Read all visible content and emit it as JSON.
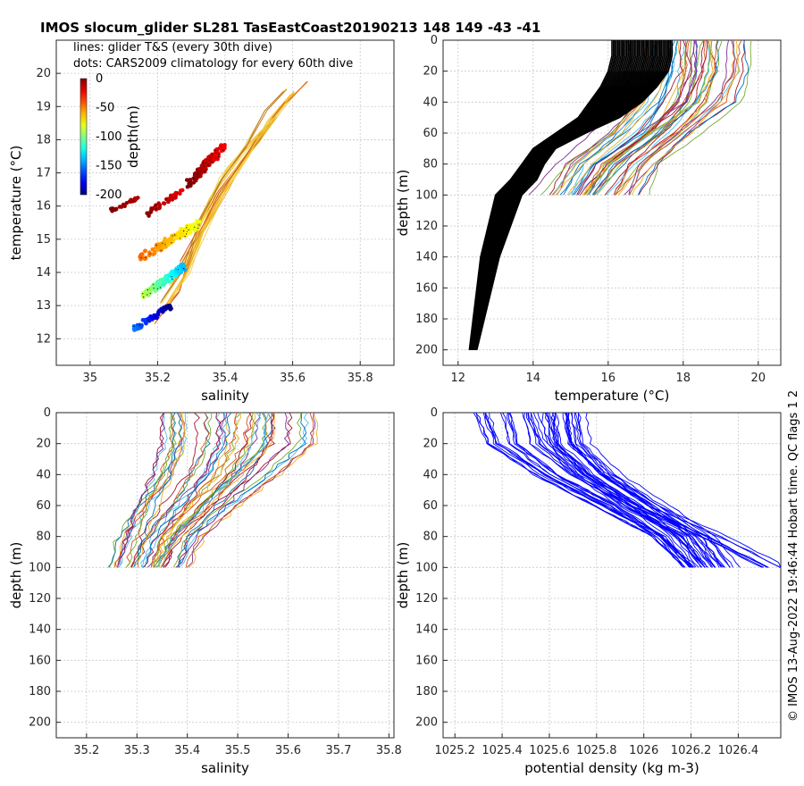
{
  "title": "IMOS slocum_glider SL281 TasEastCoast20190213 148  149  -43  -41",
  "copyright": "© IMOS 13-Aug-2022 19:46:44 Hobart time. QC flags 1  2",
  "colors": {
    "grid": "#c8c8d0",
    "axis": "#262626",
    "density_lines": "#0000ff",
    "climatology_temp": "#000000",
    "series_palette": [
      "#0072bd",
      "#d95319",
      "#edb120",
      "#7e2f8e",
      "#77ac30",
      "#4dbeee",
      "#a2142f"
    ]
  },
  "chart_data": [
    {
      "id": "ts",
      "type": "scatter",
      "annotations": [
        "lines: glider T&S (every 30th dive)",
        "dots: CARS2009 climatology for every 60th dive"
      ],
      "xlabel": "salinity",
      "ylabel": "temperature (°C)",
      "xlim": [
        34.9,
        35.9
      ],
      "ylim": [
        11.2,
        21.0
      ],
      "xticks": [
        35,
        35.2,
        35.4,
        35.6,
        35.8
      ],
      "yticks": [
        12,
        13,
        14,
        15,
        16,
        17,
        18,
        19,
        20
      ],
      "grid": true,
      "colorbar": {
        "label": "depth(m)",
        "ticks": [
          0,
          -50,
          -100,
          -150,
          -200
        ],
        "range": [
          -200,
          0
        ],
        "colormap": "jet"
      },
      "glider_lines": [
        {
          "points": [
            [
              35.19,
              12.5
            ],
            [
              35.26,
              13.4
            ],
            [
              35.3,
              14.6
            ],
            [
              35.36,
              15.9
            ],
            [
              35.43,
              17.0
            ],
            [
              35.5,
              18.0
            ],
            [
              35.57,
              19.0
            ],
            [
              35.64,
              19.8
            ]
          ]
        },
        {
          "points": [
            [
              35.22,
              12.9
            ],
            [
              35.29,
              14.0
            ],
            [
              35.34,
              15.2
            ],
            [
              35.4,
              16.4
            ],
            [
              35.47,
              17.5
            ],
            [
              35.53,
              18.5
            ],
            [
              35.6,
              19.4
            ]
          ]
        },
        {
          "points": [
            [
              35.24,
              13.6
            ],
            [
              35.31,
              14.8
            ],
            [
              35.37,
              16.0
            ],
            [
              35.43,
              17.0
            ],
            [
              35.49,
              17.9
            ],
            [
              35.55,
              18.7
            ]
          ]
        },
        {
          "points": [
            [
              35.27,
              14.3
            ],
            [
              35.33,
              15.4
            ],
            [
              35.38,
              16.4
            ],
            [
              35.44,
              17.3
            ],
            [
              35.51,
              18.2
            ],
            [
              35.58,
              19.1
            ]
          ]
        },
        {
          "points": [
            [
              35.31,
              15.3
            ],
            [
              35.36,
              16.2
            ],
            [
              35.41,
              17.1
            ],
            [
              35.47,
              17.8
            ],
            [
              35.54,
              18.6
            ]
          ]
        },
        {
          "points": [
            [
              35.21,
              13.1
            ],
            [
              35.28,
              14.2
            ],
            [
              35.33,
              15.6
            ],
            [
              35.39,
              16.8
            ],
            [
              35.46,
              17.8
            ],
            [
              35.52,
              18.9
            ],
            [
              35.58,
              19.5
            ]
          ]
        }
      ],
      "climatology_clusters": [
        {
          "x": [
            35.06,
            35.14
          ],
          "y": [
            15.8,
            16.3
          ],
          "depth": [
            -10,
            0
          ],
          "n": 22
        },
        {
          "x": [
            35.17,
            35.27
          ],
          "y": [
            15.7,
            16.5
          ],
          "depth": [
            -20,
            -5
          ],
          "n": 40
        },
        {
          "x": [
            35.29,
            35.4
          ],
          "y": [
            16.5,
            18.0
          ],
          "depth": [
            -25,
            0
          ],
          "n": 130
        },
        {
          "x": [
            35.15,
            35.32
          ],
          "y": [
            14.3,
            15.6
          ],
          "depth": [
            -80,
            -45
          ],
          "n": 120
        },
        {
          "x": [
            35.16,
            35.28
          ],
          "y": [
            13.2,
            14.3
          ],
          "depth": [
            -140,
            -90
          ],
          "n": 120
        },
        {
          "x": [
            35.13,
            35.24
          ],
          "y": [
            12.2,
            13.1
          ],
          "depth": [
            -200,
            -150
          ],
          "n": 80
        }
      ]
    },
    {
      "id": "temp_profile",
      "type": "line",
      "xlabel": "temperature (°C)",
      "ylabel": "depth (m)",
      "xlim": [
        11.6,
        20.6
      ],
      "ylim": [
        0,
        210
      ],
      "y_reversed": true,
      "xticks": [
        12,
        14,
        16,
        18,
        20
      ],
      "yticks": [
        0,
        20,
        40,
        60,
        80,
        100,
        120,
        140,
        160,
        180,
        200
      ],
      "grid": true,
      "climatology_profile": {
        "depth": [
          0,
          10,
          20,
          30,
          40,
          50,
          60,
          70,
          80,
          90,
          100,
          120,
          140,
          160,
          180,
          200
        ],
        "temp_min": [
          16.1,
          16.1,
          16.0,
          15.8,
          15.5,
          15.2,
          14.6,
          14.0,
          13.7,
          13.4,
          13.0,
          12.8,
          12.6,
          12.5,
          12.4,
          12.3
        ],
        "temp_max": [
          17.7,
          17.7,
          17.6,
          17.3,
          16.9,
          16.3,
          15.4,
          14.6,
          14.3,
          14.1,
          13.7,
          13.4,
          13.1,
          12.9,
          12.7,
          12.5
        ]
      },
      "glider_profiles": [
        {
          "depth": [
            0,
            20,
            40,
            60,
            80,
            100
          ],
          "temp": [
            18.3,
            18.3,
            18.1,
            17.4,
            16.2,
            15.6
          ]
        },
        {
          "depth": [
            0,
            20,
            40,
            60,
            80,
            100
          ],
          "temp": [
            18.8,
            18.8,
            18.5,
            17.8,
            16.8,
            16.1
          ]
        },
        {
          "depth": [
            0,
            20,
            40,
            60,
            80,
            100
          ],
          "temp": [
            17.5,
            17.5,
            17.2,
            16.4,
            15.3,
            14.8
          ]
        },
        {
          "depth": [
            0,
            20,
            40,
            60,
            80,
            100
          ],
          "temp": [
            19.6,
            19.6,
            19.2,
            18.2,
            17.2,
            16.8
          ]
        },
        {
          "depth": [
            0,
            20,
            40,
            60,
            80,
            100
          ],
          "temp": [
            18.0,
            17.9,
            17.6,
            16.9,
            15.8,
            15.2
          ]
        },
        {
          "depth": [
            0,
            20,
            40,
            60,
            80,
            100
          ],
          "temp": [
            19.0,
            19.0,
            18.6,
            17.5,
            16.3,
            15.7
          ]
        },
        {
          "depth": [
            0,
            20,
            40,
            60,
            80,
            100
          ],
          "temp": [
            17.2,
            17.2,
            16.9,
            16.2,
            15.1,
            14.5
          ]
        }
      ]
    },
    {
      "id": "sal_profile",
      "type": "line",
      "xlabel": "salinity",
      "ylabel": "depth (m)",
      "xlim": [
        35.14,
        35.81
      ],
      "ylim": [
        0,
        210
      ],
      "y_reversed": true,
      "xticks": [
        35.2,
        35.3,
        35.4,
        35.5,
        35.6,
        35.7,
        35.8
      ],
      "yticks": [
        0,
        20,
        40,
        60,
        80,
        100,
        120,
        140,
        160,
        180,
        200
      ],
      "grid": true,
      "glider_profiles": [
        {
          "depth": [
            0,
            20,
            40,
            60,
            80,
            100
          ],
          "sal": [
            35.45,
            35.45,
            35.42,
            35.38,
            35.33,
            35.3
          ]
        },
        {
          "depth": [
            0,
            20,
            40,
            60,
            80,
            100
          ],
          "sal": [
            35.55,
            35.54,
            35.5,
            35.44,
            35.38,
            35.36
          ]
        },
        {
          "depth": [
            0,
            20,
            40,
            60,
            80,
            100
          ],
          "sal": [
            35.63,
            35.63,
            35.56,
            35.48,
            35.41,
            35.38
          ]
        },
        {
          "depth": [
            0,
            20,
            40,
            60,
            80,
            100
          ],
          "sal": [
            35.4,
            35.4,
            35.38,
            35.33,
            35.29,
            35.27
          ]
        },
        {
          "depth": [
            0,
            20,
            40,
            60,
            80,
            100
          ],
          "sal": [
            35.5,
            35.49,
            35.46,
            35.4,
            35.35,
            35.33
          ]
        },
        {
          "depth": [
            0,
            20,
            40,
            60,
            80,
            100
          ],
          "sal": [
            35.37,
            35.37,
            35.35,
            35.32,
            35.3,
            35.28
          ]
        },
        {
          "depth": [
            0,
            20,
            40,
            60,
            80,
            100
          ],
          "sal": [
            35.58,
            35.58,
            35.52,
            35.46,
            35.4,
            35.36
          ]
        }
      ]
    },
    {
      "id": "dens_profile",
      "type": "line",
      "xlabel": "potential density (kg m-3)",
      "ylabel": "depth (m)",
      "xlim": [
        1025.15,
        1026.58
      ],
      "ylim": [
        0,
        210
      ],
      "y_reversed": true,
      "xticks": [
        1025.2,
        1025.4,
        1025.6,
        1025.8,
        1026,
        1026.2,
        1026.4
      ],
      "yticks": [
        0,
        20,
        40,
        60,
        80,
        100,
        120,
        140,
        160,
        180,
        200
      ],
      "grid": true,
      "glider_profiles": [
        {
          "depth": [
            0,
            20,
            40,
            60,
            80,
            100
          ],
          "dens": [
            1025.62,
            1025.64,
            1025.78,
            1025.98,
            1026.15,
            1026.25
          ]
        },
        {
          "depth": [
            0,
            20,
            40,
            60,
            80,
            100
          ],
          "dens": [
            1025.3,
            1025.35,
            1025.55,
            1025.8,
            1026.05,
            1026.18
          ]
        },
        {
          "depth": [
            0,
            20,
            40,
            60,
            80,
            100
          ],
          "dens": [
            1025.7,
            1025.72,
            1025.85,
            1026.05,
            1026.25,
            1026.35
          ]
        },
        {
          "depth": [
            0,
            20,
            40,
            60,
            80,
            100
          ],
          "dens": [
            1025.45,
            1025.48,
            1025.65,
            1025.9,
            1026.1,
            1026.22
          ]
        },
        {
          "depth": [
            0,
            20,
            40,
            60,
            80,
            100
          ],
          "dens": [
            1025.55,
            1025.6,
            1025.75,
            1025.95,
            1026.2,
            1026.3
          ]
        },
        {
          "depth": [
            0,
            20,
            40,
            60,
            80,
            100
          ],
          "dens": [
            1025.65,
            1025.67,
            1025.8,
            1026.0,
            1026.3,
            1026.56
          ]
        }
      ]
    }
  ]
}
